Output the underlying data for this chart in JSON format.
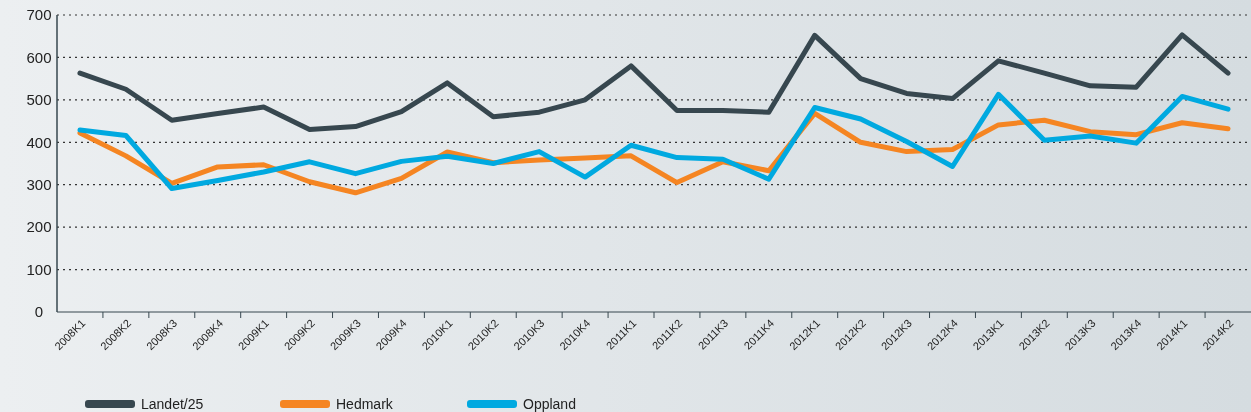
{
  "chart_data": {
    "type": "line",
    "categories": [
      "2008K1",
      "2008K2",
      "2008K3",
      "2008K4",
      "2009K1",
      "2009K2",
      "2009K3",
      "2009K4",
      "2010K1",
      "2010K2",
      "2010K3",
      "2010K4",
      "2011K1",
      "2011K2",
      "2011K3",
      "2011K4",
      "2012K1",
      "2012K2",
      "2012K3",
      "2012K4",
      "2013K1",
      "2013K2",
      "2013K3",
      "2013K4",
      "2014K1",
      "2014K2"
    ],
    "series": [
      {
        "name": "Landet/25",
        "color": "#37474f",
        "values": [
          563,
          525,
          452,
          468,
          483,
          430,
          437,
          472,
          540,
          460,
          471,
          500,
          580,
          475,
          475,
          471,
          652,
          550,
          515,
          503,
          592,
          563,
          533,
          530,
          653,
          563
        ]
      },
      {
        "name": "Hedmark",
        "color": "#f58522",
        "values": [
          422,
          368,
          303,
          342,
          347,
          307,
          281,
          315,
          377,
          352,
          358,
          363,
          368,
          305,
          354,
          333,
          468,
          400,
          378,
          383,
          441,
          452,
          425,
          418,
          446,
          432
        ]
      },
      {
        "name": "Oppland",
        "color": "#00a9e0",
        "values": [
          429,
          416,
          291,
          310,
          330,
          354,
          326,
          355,
          367,
          350,
          378,
          318,
          393,
          364,
          360,
          313,
          482,
          455,
          402,
          343,
          513,
          405,
          415,
          398,
          508,
          478
        ]
      }
    ],
    "ylim": [
      0,
      700
    ],
    "yticks": [
      0,
      100,
      200,
      300,
      400,
      500,
      600,
      700
    ],
    "grid": "y",
    "legend": "bottom",
    "marker": "none",
    "line_style": "solid"
  }
}
